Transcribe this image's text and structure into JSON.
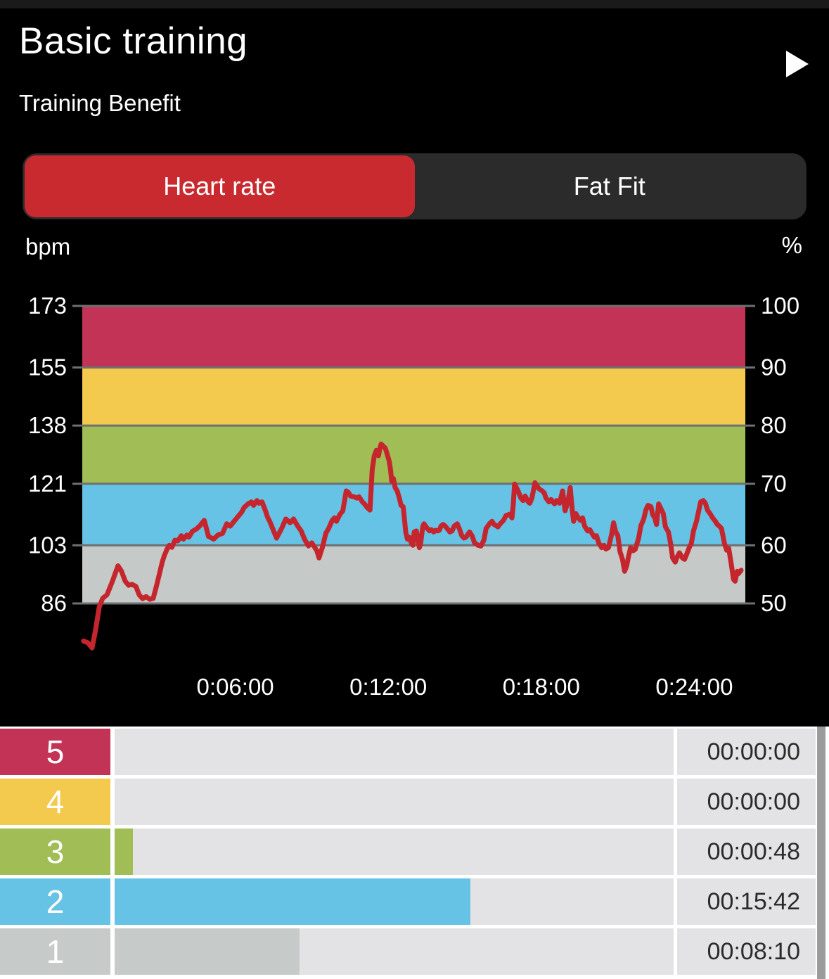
{
  "header": {
    "title": "Basic training",
    "subtitle": "Training Benefit"
  },
  "tabs": [
    {
      "label": "Heart rate",
      "selected": true
    },
    {
      "label": "Fat Fit",
      "selected": false
    }
  ],
  "colors": {
    "accent_red": "#c92a30",
    "line_red": "#c5262d",
    "zone5_pink": "#c23355",
    "zone4_yellow": "#f3ca4e",
    "zone3_green": "#a0bd56",
    "zone2_blue": "#66c3e6",
    "zone1_gray": "#c5cac8",
    "gridline": "#6e7072",
    "track_gray": "#e3e3e5",
    "scrollbar": "#9b9b9b"
  },
  "chart_data": {
    "type": "line",
    "title": "Heart rate over time with intensity zones",
    "left_axis": {
      "unit": "bpm",
      "ticks": [
        173,
        155,
        138,
        121,
        103,
        86
      ]
    },
    "right_axis": {
      "unit": "%",
      "ticks": [
        100,
        90,
        80,
        70,
        60,
        50
      ]
    },
    "x_axis": {
      "tick_seconds": [
        360,
        720,
        1080,
        1440
      ],
      "tick_labels": [
        "0:06:00",
        "0:12:00",
        "0:18:00",
        "0:24:00"
      ],
      "max_seconds": 1560
    },
    "y_range": [
      70,
      173
    ],
    "grid": true,
    "zones": [
      {
        "zone": 5,
        "from": 155,
        "to": 173,
        "color": "#c23355"
      },
      {
        "zone": 4,
        "from": 138,
        "to": 155,
        "color": "#f3ca4e"
      },
      {
        "zone": 3,
        "from": 121,
        "to": 138,
        "color": "#a0bd56"
      },
      {
        "zone": 2,
        "from": 103,
        "to": 121,
        "color": "#66c3e6"
      },
      {
        "zone": 1,
        "from": 86,
        "to": 103,
        "color": "#c5cac8"
      }
    ],
    "series": [
      {
        "name": "heart_rate_bpm",
        "color": "#c5262d",
        "points": [
          [
            3,
            75
          ],
          [
            13,
            74.5
          ],
          [
            23,
            73
          ],
          [
            31,
            78
          ],
          [
            40,
            85
          ],
          [
            48,
            87.5
          ],
          [
            58,
            88.5
          ],
          [
            71,
            92.5
          ],
          [
            84,
            97
          ],
          [
            92,
            95.5
          ],
          [
            101,
            92.5
          ],
          [
            109,
            91.3
          ],
          [
            117,
            91.6
          ],
          [
            126,
            91
          ],
          [
            134,
            88.5
          ],
          [
            142,
            87.4
          ],
          [
            150,
            88
          ],
          [
            159,
            87.2
          ],
          [
            167,
            87.5
          ],
          [
            175,
            91.3
          ],
          [
            183,
            95.4
          ],
          [
            188,
            98
          ],
          [
            193,
            100
          ],
          [
            200,
            102
          ],
          [
            205,
            103
          ],
          [
            211,
            102.4
          ],
          [
            218,
            104.5
          ],
          [
            225,
            104.3
          ],
          [
            233,
            105.8
          ],
          [
            238,
            104.8
          ],
          [
            246,
            106
          ],
          [
            251,
            105.4
          ],
          [
            259,
            107.1
          ],
          [
            269,
            107.8
          ],
          [
            276,
            108.6
          ],
          [
            287,
            110.3
          ],
          [
            297,
            105.6
          ],
          [
            309,
            104.8
          ],
          [
            319,
            106
          ],
          [
            330,
            106.5
          ],
          [
            340,
            109.3
          ],
          [
            348,
            108.6
          ],
          [
            357,
            110
          ],
          [
            365,
            111.2
          ],
          [
            375,
            112.7
          ],
          [
            381,
            114.1
          ],
          [
            390,
            115.1
          ],
          [
            398,
            115.7
          ],
          [
            403,
            114.7
          ],
          [
            411,
            116.1
          ],
          [
            416,
            115.3
          ],
          [
            423,
            115.7
          ],
          [
            431,
            113.1
          ],
          [
            436,
            111.2
          ],
          [
            441,
            110
          ],
          [
            449,
            107.6
          ],
          [
            457,
            105.1
          ],
          [
            469,
            107.9
          ],
          [
            479,
            110.7
          ],
          [
            489,
            109.6
          ],
          [
            497,
            110.7
          ],
          [
            507,
            108.6
          ],
          [
            515,
            107.2
          ],
          [
            523,
            104.8
          ],
          [
            532,
            102.8
          ],
          [
            540,
            103.7
          ],
          [
            552,
            101.4
          ],
          [
            557,
            99.3
          ],
          [
            565,
            102.4
          ],
          [
            573,
            106.5
          ],
          [
            580,
            108
          ],
          [
            588,
            110.3
          ],
          [
            593,
            111
          ],
          [
            598,
            110
          ],
          [
            606,
            112
          ],
          [
            613,
            113.1
          ],
          [
            621,
            118.9
          ],
          [
            626,
            118.5
          ],
          [
            631,
            117.4
          ],
          [
            639,
            117.2
          ],
          [
            646,
            116.8
          ],
          [
            651,
            117.2
          ],
          [
            659,
            115.7
          ],
          [
            664,
            115.1
          ],
          [
            670,
            114.1
          ],
          [
            677,
            113.3
          ],
          [
            682,
            125
          ],
          [
            687,
            129.2
          ],
          [
            692,
            130.8
          ],
          [
            697,
            129.2
          ],
          [
            700,
            131.2
          ],
          [
            703,
            132.6
          ],
          [
            708,
            132
          ],
          [
            713,
            131.4
          ],
          [
            717,
            129.8
          ],
          [
            722,
            127.7
          ],
          [
            725,
            125.3
          ],
          [
            728,
            121.7
          ],
          [
            732,
            122.5
          ],
          [
            736,
            119.9
          ],
          [
            741,
            118.9
          ],
          [
            746,
            116.8
          ],
          [
            750,
            114.7
          ],
          [
            755,
            114.3
          ],
          [
            758,
            110.7
          ],
          [
            761,
            106.9
          ],
          [
            765,
            104.8
          ],
          [
            769,
            105.4
          ],
          [
            774,
            103.7
          ],
          [
            778,
            103
          ],
          [
            781,
            106.9
          ],
          [
            786,
            107.2
          ],
          [
            789,
            105.1
          ],
          [
            793,
            102.3
          ],
          [
            796,
            103.5
          ],
          [
            801,
            108.4
          ],
          [
            804,
            109.3
          ],
          [
            809,
            108.4
          ],
          [
            812,
            107.9
          ],
          [
            817,
            107.2
          ],
          [
            821,
            107.6
          ],
          [
            827,
            106.9
          ],
          [
            831,
            107.4
          ],
          [
            836,
            107.2
          ],
          [
            840,
            107.4
          ],
          [
            844,
            108.6
          ],
          [
            849,
            109.1
          ],
          [
            854,
            108.6
          ],
          [
            859,
            107.8
          ],
          [
            865,
            106.9
          ],
          [
            870,
            107.2
          ],
          [
            875,
            108.6
          ],
          [
            882,
            109.3
          ],
          [
            887,
            107.9
          ],
          [
            893,
            105.8
          ],
          [
            898,
            105.1
          ],
          [
            903,
            105.4
          ],
          [
            911,
            106.9
          ],
          [
            917,
            105.8
          ],
          [
            923,
            103.7
          ],
          [
            931,
            103
          ],
          [
            938,
            102.8
          ],
          [
            945,
            104.5
          ],
          [
            950,
            107.9
          ],
          [
            958,
            109.3
          ],
          [
            964,
            110
          ],
          [
            969,
            109.1
          ],
          [
            978,
            108.4
          ],
          [
            982,
            109.1
          ],
          [
            991,
            110.3
          ],
          [
            997,
            111.7
          ],
          [
            1006,
            112.1
          ],
          [
            1011,
            111
          ],
          [
            1014,
            115
          ],
          [
            1017,
            120.9
          ],
          [
            1024,
            119.3
          ],
          [
            1032,
            116.8
          ],
          [
            1037,
            116.1
          ],
          [
            1042,
            117.4
          ],
          [
            1049,
            115.7
          ],
          [
            1053,
            115.3
          ],
          [
            1058,
            116.8
          ],
          [
            1065,
            121.3
          ],
          [
            1070,
            120.3
          ],
          [
            1075,
            119.5
          ],
          [
            1082,
            118.9
          ],
          [
            1087,
            118.3
          ],
          [
            1091,
            116.8
          ],
          [
            1098,
            115.7
          ],
          [
            1103,
            116.4
          ],
          [
            1111,
            115.1
          ],
          [
            1116,
            116.1
          ],
          [
            1123,
            115.3
          ],
          [
            1130,
            118.9
          ],
          [
            1136,
            113.1
          ],
          [
            1143,
            116
          ],
          [
            1148,
            119.9
          ],
          [
            1153,
            113
          ],
          [
            1156,
            110
          ],
          [
            1161,
            112.3
          ],
          [
            1166,
            111.2
          ],
          [
            1172,
            110.3
          ],
          [
            1177,
            111
          ],
          [
            1182,
            108.6
          ],
          [
            1189,
            107.2
          ],
          [
            1194,
            107.6
          ],
          [
            1199,
            106.5
          ],
          [
            1205,
            105.4
          ],
          [
            1210,
            105.8
          ],
          [
            1215,
            103.7
          ],
          [
            1222,
            102.3
          ],
          [
            1227,
            103
          ],
          [
            1232,
            101.9
          ],
          [
            1238,
            102.3
          ],
          [
            1245,
            106
          ],
          [
            1250,
            109.6
          ],
          [
            1255,
            107
          ],
          [
            1260,
            105.8
          ],
          [
            1265,
            101.2
          ],
          [
            1271,
            98.9
          ],
          [
            1276,
            95.4
          ],
          [
            1281,
            97
          ],
          [
            1285,
            99.7
          ],
          [
            1290,
            102.3
          ],
          [
            1296,
            101.4
          ],
          [
            1301,
            101.8
          ],
          [
            1309,
            105.1
          ],
          [
            1314,
            108.6
          ],
          [
            1321,
            110.7
          ],
          [
            1326,
            113.3
          ],
          [
            1331,
            114.7
          ],
          [
            1338,
            114.3
          ],
          [
            1342,
            112
          ],
          [
            1347,
            111
          ],
          [
            1351,
            109.1
          ],
          [
            1356,
            115.1
          ],
          [
            1367,
            112.3
          ],
          [
            1372,
            108.4
          ],
          [
            1379,
            106.9
          ],
          [
            1384,
            103.7
          ],
          [
            1389,
            99.3
          ],
          [
            1395,
            98.1
          ],
          [
            1400,
            99.7
          ],
          [
            1405,
            100.8
          ],
          [
            1412,
            99.3
          ],
          [
            1417,
            98.9
          ],
          [
            1422,
            100.4
          ],
          [
            1428,
            102.3
          ],
          [
            1433,
            103.5
          ],
          [
            1438,
            107.2
          ],
          [
            1445,
            110
          ],
          [
            1455,
            115.7
          ],
          [
            1461,
            116.1
          ],
          [
            1466,
            115.3
          ],
          [
            1471,
            113.3
          ],
          [
            1478,
            112.1
          ],
          [
            1483,
            111
          ],
          [
            1488,
            110.3
          ],
          [
            1494,
            109.1
          ],
          [
            1499,
            108.6
          ],
          [
            1504,
            107.9
          ],
          [
            1511,
            103.5
          ],
          [
            1516,
            101.6
          ],
          [
            1521,
            102.1
          ],
          [
            1527,
            97.4
          ],
          [
            1532,
            93.1
          ],
          [
            1536,
            92.5
          ],
          [
            1541,
            95.4
          ],
          [
            1544,
            94.7
          ],
          [
            1550,
            95.7
          ]
        ]
      }
    ]
  },
  "unit_labels": {
    "left": "bpm",
    "right": "%"
  },
  "zone_table": {
    "rows": [
      {
        "zone": "5",
        "color": "#c23355",
        "bar_color": "#c23355",
        "duration": "00:00:00",
        "seconds": 0
      },
      {
        "zone": "4",
        "color": "#f3ca4e",
        "bar_color": "#f3ca4e",
        "duration": "00:00:00",
        "seconds": 0
      },
      {
        "zone": "3",
        "color": "#a0bd56",
        "bar_color": "#a0bd56",
        "duration": "00:00:48",
        "seconds": 48
      },
      {
        "zone": "2",
        "color": "#66c3e6",
        "bar_color": "#66c3e6",
        "duration": "00:15:42",
        "seconds": 942
      },
      {
        "zone": "1",
        "color": "#c6cbc9",
        "bar_color": "#c6cbc9",
        "duration": "00:08:10",
        "seconds": 490
      }
    ]
  }
}
